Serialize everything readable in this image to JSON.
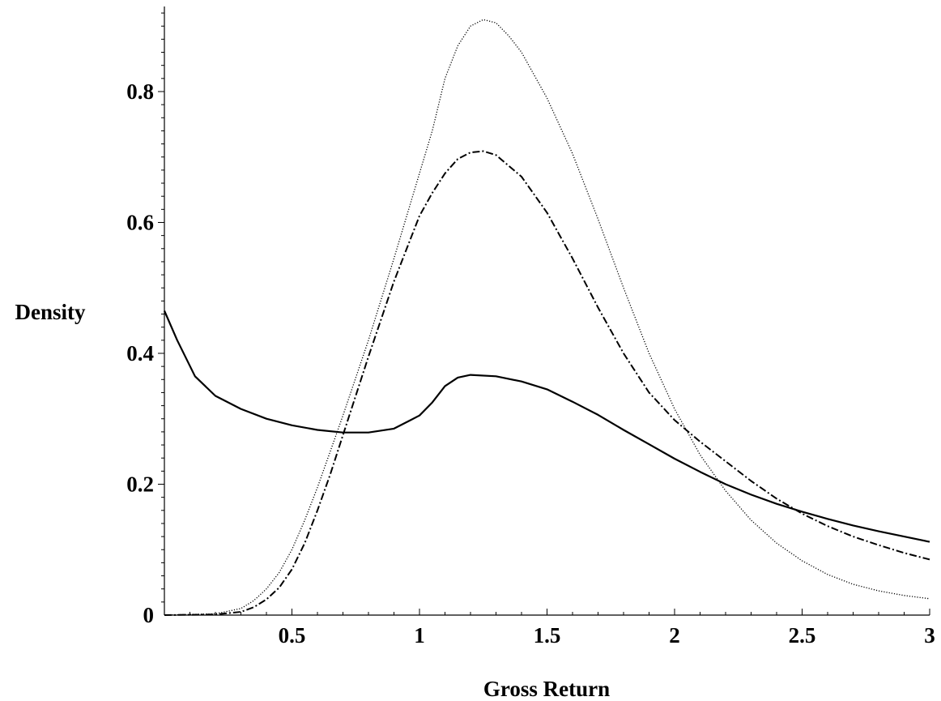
{
  "chart_data": {
    "type": "line",
    "title": "",
    "xlabel": "Gross Return",
    "ylabel": "Density",
    "xlim": [
      0,
      3
    ],
    "ylim": [
      0,
      0.93
    ],
    "x_ticks": [
      {
        "value": 0.5,
        "label": "0.5"
      },
      {
        "value": 1,
        "label": "1"
      },
      {
        "value": 1.5,
        "label": "1.5"
      },
      {
        "value": 2,
        "label": "2"
      },
      {
        "value": 2.5,
        "label": "2.5"
      },
      {
        "value": 3,
        "label": "3"
      }
    ],
    "y_ticks": [
      {
        "value": 0,
        "label": "0"
      },
      {
        "value": 0.2,
        "label": "0.2"
      },
      {
        "value": 0.4,
        "label": "0.4"
      },
      {
        "value": 0.6,
        "label": "0.6"
      },
      {
        "value": 0.8,
        "label": "0.8"
      }
    ],
    "grid": false,
    "legend": "none",
    "series": [
      {
        "style": "solid",
        "color": "#000000",
        "points": [
          [
            0,
            0.465
          ],
          [
            0.05,
            0.42
          ],
          [
            0.12,
            0.365
          ],
          [
            0.2,
            0.335
          ],
          [
            0.3,
            0.315
          ],
          [
            0.4,
            0.3
          ],
          [
            0.5,
            0.29
          ],
          [
            0.6,
            0.283
          ],
          [
            0.7,
            0.279
          ],
          [
            0.8,
            0.279
          ],
          [
            0.9,
            0.285
          ],
          [
            1.0,
            0.305
          ],
          [
            1.05,
            0.325
          ],
          [
            1.1,
            0.35
          ],
          [
            1.15,
            0.363
          ],
          [
            1.2,
            0.367
          ],
          [
            1.3,
            0.365
          ],
          [
            1.4,
            0.357
          ],
          [
            1.5,
            0.345
          ],
          [
            1.6,
            0.326
          ],
          [
            1.7,
            0.306
          ],
          [
            1.8,
            0.283
          ],
          [
            1.9,
            0.261
          ],
          [
            2.0,
            0.239
          ],
          [
            2.1,
            0.219
          ],
          [
            2.2,
            0.2
          ],
          [
            2.3,
            0.184
          ],
          [
            2.4,
            0.17
          ],
          [
            2.5,
            0.158
          ],
          [
            2.6,
            0.147
          ],
          [
            2.7,
            0.137
          ],
          [
            2.8,
            0.128
          ],
          [
            2.9,
            0.12
          ],
          [
            3.0,
            0.112
          ]
        ]
      },
      {
        "style": "dotted",
        "color": "#000000",
        "points": [
          [
            0,
            0
          ],
          [
            0.2,
            0.002
          ],
          [
            0.3,
            0.01
          ],
          [
            0.35,
            0.022
          ],
          [
            0.4,
            0.04
          ],
          [
            0.45,
            0.065
          ],
          [
            0.5,
            0.1
          ],
          [
            0.55,
            0.145
          ],
          [
            0.6,
            0.195
          ],
          [
            0.65,
            0.25
          ],
          [
            0.7,
            0.305
          ],
          [
            0.8,
            0.42
          ],
          [
            0.9,
            0.545
          ],
          [
            1.0,
            0.675
          ],
          [
            1.05,
            0.74
          ],
          [
            1.1,
            0.82
          ],
          [
            1.15,
            0.87
          ],
          [
            1.2,
            0.9
          ],
          [
            1.25,
            0.91
          ],
          [
            1.3,
            0.905
          ],
          [
            1.35,
            0.885
          ],
          [
            1.4,
            0.86
          ],
          [
            1.5,
            0.79
          ],
          [
            1.6,
            0.705
          ],
          [
            1.7,
            0.605
          ],
          [
            1.8,
            0.5
          ],
          [
            1.9,
            0.4
          ],
          [
            2.0,
            0.315
          ],
          [
            2.1,
            0.245
          ],
          [
            2.2,
            0.19
          ],
          [
            2.3,
            0.145
          ],
          [
            2.4,
            0.11
          ],
          [
            2.5,
            0.083
          ],
          [
            2.6,
            0.062
          ],
          [
            2.7,
            0.047
          ],
          [
            2.8,
            0.037
          ],
          [
            2.9,
            0.03
          ],
          [
            3.0,
            0.025
          ]
        ]
      },
      {
        "style": "dashdot",
        "color": "#000000",
        "points": [
          [
            0,
            0
          ],
          [
            0.2,
            0.001
          ],
          [
            0.3,
            0.005
          ],
          [
            0.35,
            0.012
          ],
          [
            0.4,
            0.024
          ],
          [
            0.45,
            0.042
          ],
          [
            0.5,
            0.07
          ],
          [
            0.55,
            0.11
          ],
          [
            0.6,
            0.16
          ],
          [
            0.65,
            0.215
          ],
          [
            0.7,
            0.275
          ],
          [
            0.8,
            0.395
          ],
          [
            0.9,
            0.51
          ],
          [
            1.0,
            0.61
          ],
          [
            1.05,
            0.645
          ],
          [
            1.1,
            0.675
          ],
          [
            1.15,
            0.697
          ],
          [
            1.2,
            0.707
          ],
          [
            1.25,
            0.709
          ],
          [
            1.3,
            0.703
          ],
          [
            1.4,
            0.67
          ],
          [
            1.5,
            0.615
          ],
          [
            1.6,
            0.545
          ],
          [
            1.7,
            0.47
          ],
          [
            1.8,
            0.4
          ],
          [
            1.9,
            0.34
          ],
          [
            2.0,
            0.298
          ],
          [
            2.1,
            0.265
          ],
          [
            2.2,
            0.235
          ],
          [
            2.3,
            0.205
          ],
          [
            2.4,
            0.178
          ],
          [
            2.5,
            0.155
          ],
          [
            2.6,
            0.136
          ],
          [
            2.7,
            0.12
          ],
          [
            2.8,
            0.107
          ],
          [
            2.9,
            0.095
          ],
          [
            3.0,
            0.085
          ]
        ]
      }
    ]
  }
}
